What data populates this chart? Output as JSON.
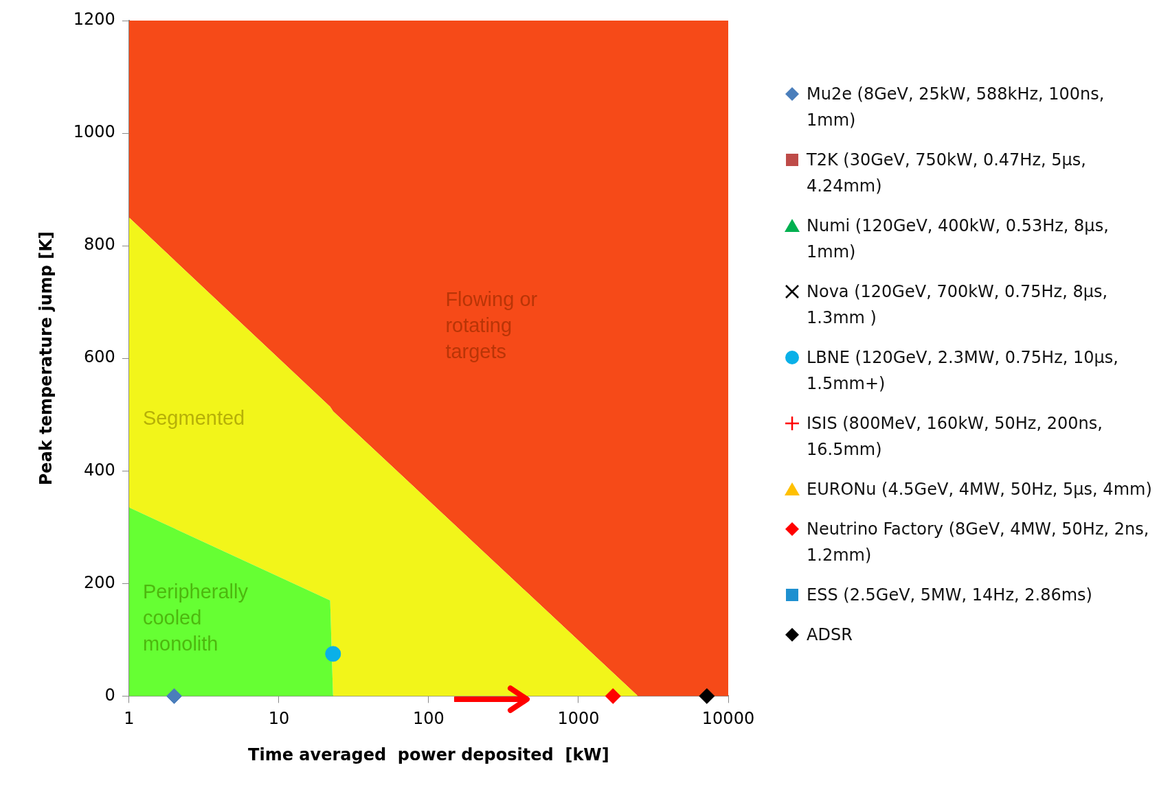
{
  "chart_data": {
    "type": "scatter",
    "xlabel": "Time averaged  power deposited  [kW]",
    "ylabel": "Peak temperature jump [K]",
    "log": "x",
    "xlim": [
      1,
      10000
    ],
    "xticks": [
      1,
      10,
      100,
      1000,
      10000
    ],
    "ylim": [
      0,
      1200
    ],
    "yticks": [
      0,
      200,
      400,
      600,
      800,
      1000,
      1200
    ],
    "grid": false,
    "legend": "right",
    "stacked": true,
    "series": [
      {
        "type": "area",
        "name": "Peripherally cooled monolith",
        "color": "#66ff33",
        "x": [
          1,
          22,
          23,
          2500,
          10000
        ],
        "values": [
          335,
          170,
          0,
          0,
          0
        ]
      },
      {
        "type": "area",
        "name": "Segmented",
        "color": "#f2f51a",
        "x": [
          1,
          22,
          23,
          2500,
          10000
        ],
        "values": [
          515,
          344,
          506,
          0,
          0
        ]
      },
      {
        "type": "area",
        "name": "Flowing or rotating targets",
        "color": "#f64a18",
        "x": [
          1,
          22,
          23,
          2500,
          10000
        ],
        "values": [
          350,
          686,
          694,
          1200,
          1200
        ]
      },
      {
        "name": "Mu2e (8GeV, 25kW, 588kHz, 100ns, 1mm)",
        "color": "#4a7ebb",
        "marker": "diamond",
        "x": [
          2
        ],
        "values": [
          0
        ]
      },
      {
        "name": "T2K (30GeV, 750kW, 0.47Hz, 5µs, 4.24mm)",
        "color": "#be4b48",
        "marker": "square"
      },
      {
        "name": "Numi (120GeV, 400kW, 0.53Hz, 8µs, 1mm)",
        "color": "#00b050",
        "marker": "triangle"
      },
      {
        "name": "Nova (120GeV, 700kW, 0.75Hz, 8µs, 1.3mm )",
        "color": "#000000",
        "marker": "x"
      },
      {
        "name": "LBNE (120GeV, 2.3MW, 0.75Hz, 10µs, 1.5mm+)",
        "color": "#0ab0e8",
        "marker": "circle",
        "x": [
          23
        ],
        "values": [
          75
        ]
      },
      {
        "name": "ISIS (800MeV, 160kW, 50Hz, 200ns, 16.5mm)",
        "color": "#ff0000",
        "marker": "cross"
      },
      {
        "name": "EURONu  (4.5GeV, 4MW, 50Hz, 5µs, 4mm)",
        "color": "#ffc000",
        "marker": "triangle"
      },
      {
        "name": "Neutrino Factory  (8GeV, 4MW, 50Hz, 2ns, 1.2mm)",
        "color": "#ff0000",
        "marker": "diamond",
        "x": [
          1700
        ],
        "values": [
          0
        ]
      },
      {
        "name": "ESS (2.5GeV, 5MW, 14Hz, 2.86ms)",
        "color": "#1e90d0",
        "marker": "square"
      },
      {
        "name": "ADSR",
        "color": "#000000",
        "marker": "diamond",
        "x": [
          7200
        ],
        "values": [
          0
        ]
      }
    ]
  }
}
